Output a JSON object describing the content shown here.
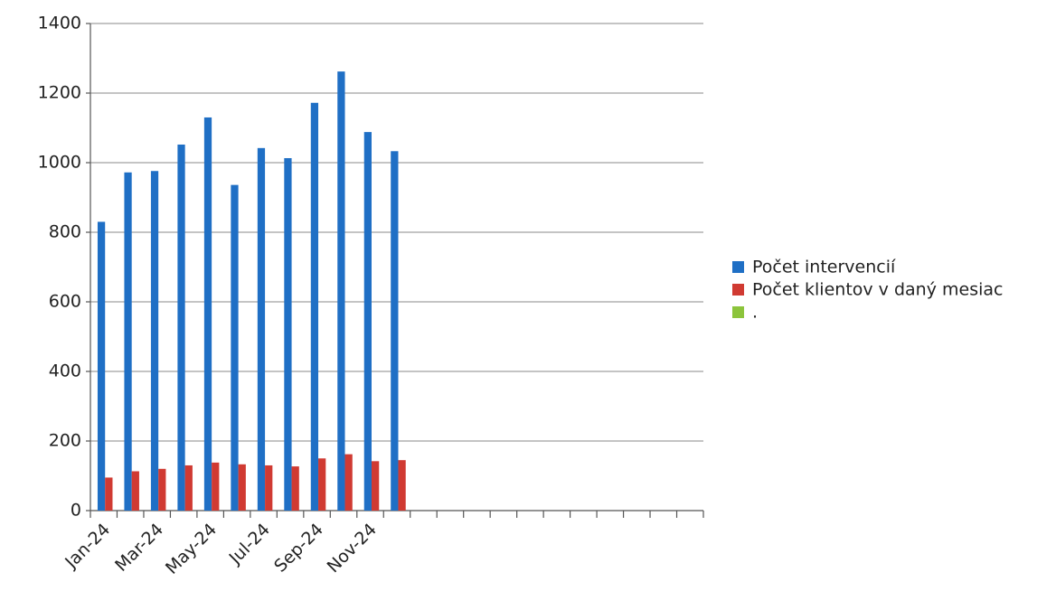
{
  "chart_data": {
    "type": "bar",
    "categories": [
      "Jan-24",
      null,
      "Mar-24",
      null,
      "May-24",
      null,
      "Jul-24",
      null,
      "Sep-24",
      null,
      "Nov-24",
      null,
      null,
      null,
      null,
      null,
      null,
      null,
      null,
      null,
      null,
      null,
      null
    ],
    "series": [
      {
        "name": "Počet intervencií",
        "color": "#1f6fc5",
        "values": [
          830,
          972,
          976,
          1052,
          1130,
          936,
          1042,
          1013,
          1172,
          1262,
          1088,
          1033,
          null,
          null,
          null,
          null,
          null,
          null,
          null,
          null,
          null,
          null,
          null
        ]
      },
      {
        "name": "Počet klientov v daný mesiac",
        "color": "#d03a32",
        "values": [
          95,
          113,
          120,
          130,
          138,
          133,
          130,
          127,
          150,
          162,
          142,
          145,
          null,
          null,
          null,
          null,
          null,
          null,
          null,
          null,
          null,
          null,
          null
        ]
      },
      {
        "name": ".",
        "color": "#8cc43c",
        "values": [
          null,
          null,
          null,
          null,
          null,
          null,
          null,
          null,
          null,
          null,
          null,
          null,
          null,
          null,
          null,
          null,
          null,
          null,
          null,
          null,
          null,
          null,
          null
        ]
      }
    ],
    "ylim": [
      0,
      1400
    ],
    "yticks": [
      0,
      200,
      400,
      600,
      800,
      1000,
      1200,
      1400
    ],
    "grid": true,
    "legend": "right"
  }
}
